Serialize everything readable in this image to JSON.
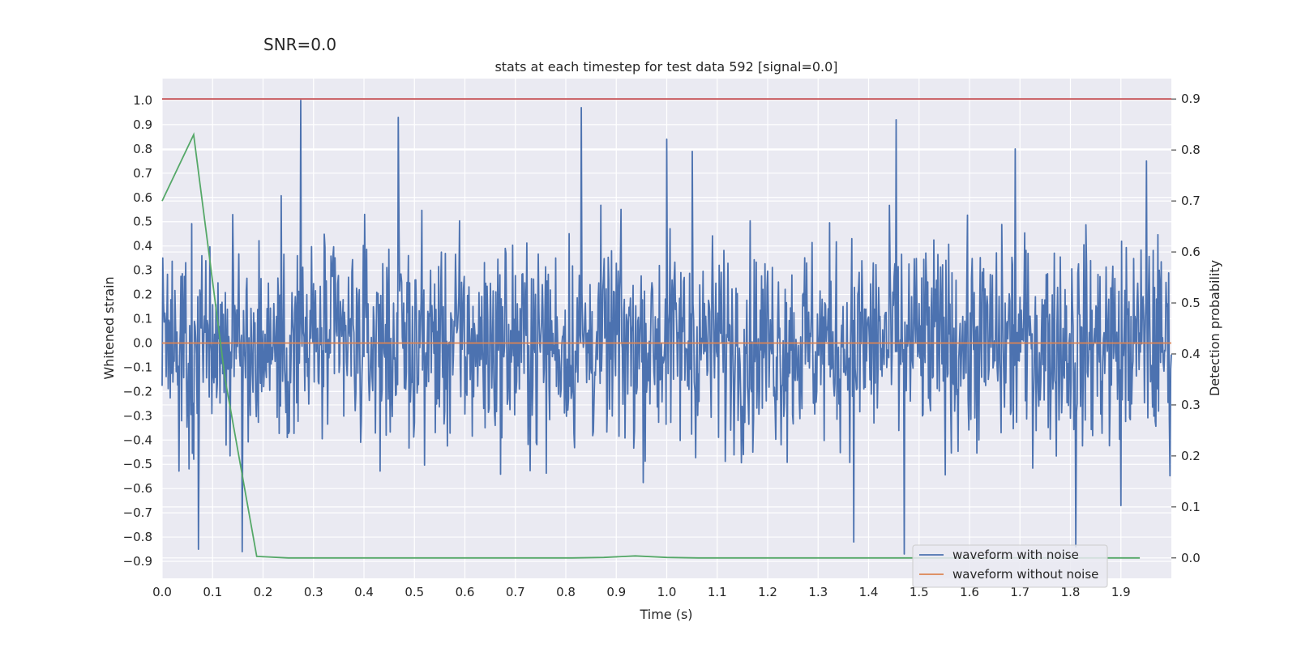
{
  "figure": {
    "suptitle": "SNR=0.0",
    "title": "stats at each timestep for test data 592 [signal=0.0]"
  },
  "chart_data": {
    "type": "line",
    "title": "stats at each timestep for test data 592 [signal=0.0]",
    "xlabel": "Time (s)",
    "ylabel": "Whitened strain",
    "y2label": "Detection probability",
    "xlim": [
      0.0,
      2.0
    ],
    "ylim": [
      -0.97,
      1.09
    ],
    "y2lim": [
      -0.04,
      0.94
    ],
    "xticks": [
      0.0,
      0.1,
      0.2,
      0.3,
      0.4,
      0.5,
      0.6,
      0.7,
      0.8,
      0.9,
      1.0,
      1.1,
      1.2,
      1.3,
      1.4,
      1.5,
      1.6,
      1.7,
      1.8,
      1.9
    ],
    "yticks": [
      1.0,
      0.9,
      0.8,
      0.7,
      0.6,
      0.5,
      0.4,
      0.3,
      0.2,
      0.1,
      0.0,
      -0.1,
      -0.2,
      -0.3,
      -0.4,
      -0.5,
      -0.6,
      -0.7,
      -0.8,
      -0.9
    ],
    "y2ticks": [
      0.9,
      0.8,
      0.7,
      0.6,
      0.5,
      0.4,
      0.3,
      0.2,
      0.1,
      0.0
    ],
    "grid": true,
    "legend_position": "lower right",
    "series": [
      {
        "name": "waveform with noise",
        "axis": "left",
        "color": "#4c72b0",
        "peaks": [
          [
            0.072,
            -0.85
          ],
          [
            0.158,
            -0.86
          ],
          [
            0.275,
            1.0
          ],
          [
            0.468,
            0.93
          ],
          [
            0.83,
            0.97
          ],
          [
            1.0,
            0.84
          ],
          [
            1.05,
            0.79
          ],
          [
            1.37,
            -0.82
          ],
          [
            1.455,
            0.92
          ],
          [
            1.47,
            -0.87
          ],
          [
            1.69,
            0.8
          ],
          [
            1.81,
            -0.84
          ],
          [
            1.95,
            0.75
          ],
          [
            1.9,
            -0.67
          ]
        ]
      },
      {
        "name": "waveform without noise",
        "axis": "left",
        "color": "#dd8452",
        "x": [
          0.0,
          2.0
        ],
        "y": [
          0.0,
          0.0
        ]
      },
      {
        "axis": "right",
        "color": "#55a868",
        "x": [
          0.0,
          0.0625,
          0.125,
          0.1875,
          0.25,
          0.3125,
          0.375,
          0.4375,
          0.5,
          0.5625,
          0.625,
          0.6875,
          0.75,
          0.8125,
          0.875,
          0.9375,
          1.0,
          1.0625,
          1.125,
          1.1875,
          1.25,
          1.3125,
          1.375,
          1.4375,
          1.5,
          1.5625,
          1.625,
          1.6875,
          1.75,
          1.8125,
          1.875,
          1.9375
        ],
        "y": [
          0.7,
          0.83,
          0.35,
          0.003,
          0.0,
          0.0,
          0.0,
          0.0,
          0.0,
          0.0,
          0.0,
          0.0,
          0.0,
          0.0,
          0.001,
          0.004,
          0.001,
          0.0,
          0.0,
          0.0,
          0.0,
          0.0,
          0.0,
          0.0,
          0.0,
          0.0,
          0.0,
          0.0,
          0.0,
          0.0,
          0.0,
          0.0
        ]
      },
      {
        "axis": "right",
        "color": "#c44e52",
        "x": [
          0.0,
          2.0
        ],
        "y": [
          0.9,
          0.9
        ]
      }
    ]
  }
}
